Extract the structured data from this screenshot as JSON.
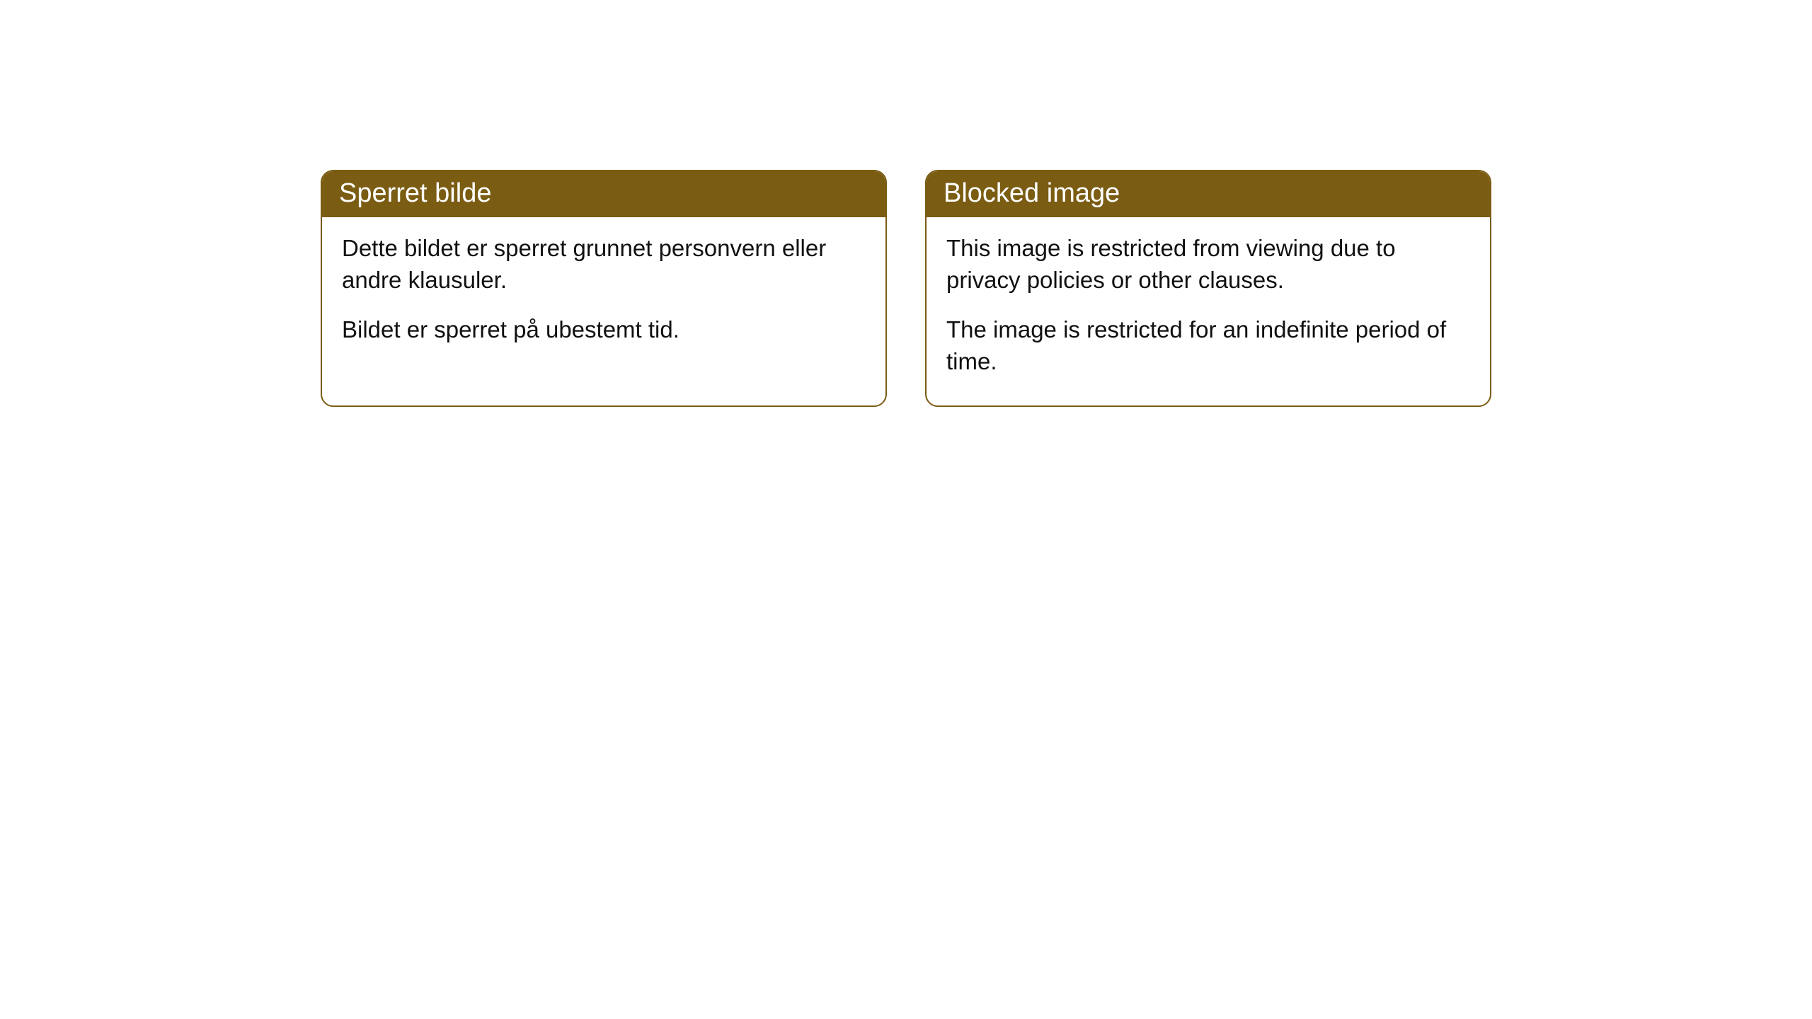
{
  "cards": {
    "left": {
      "title": "Sperret bilde",
      "paragraph1": "Dette bildet er sperret grunnet personvern eller andre klausuler.",
      "paragraph2": "Bildet er sperret på ubestemt tid."
    },
    "right": {
      "title": "Blocked image",
      "paragraph1": "This image is restricted from viewing due to privacy policies or other clauses.",
      "paragraph2": "The image is restricted for an indefinite period of time."
    }
  },
  "style": {
    "header_bg_color": "#7a5c12",
    "header_text_color": "#ffffff",
    "border_color": "#7a5c12",
    "body_text_color": "#111111",
    "background_color": "#ffffff",
    "border_radius": 18,
    "header_fontsize": 38,
    "body_fontsize": 33
  }
}
